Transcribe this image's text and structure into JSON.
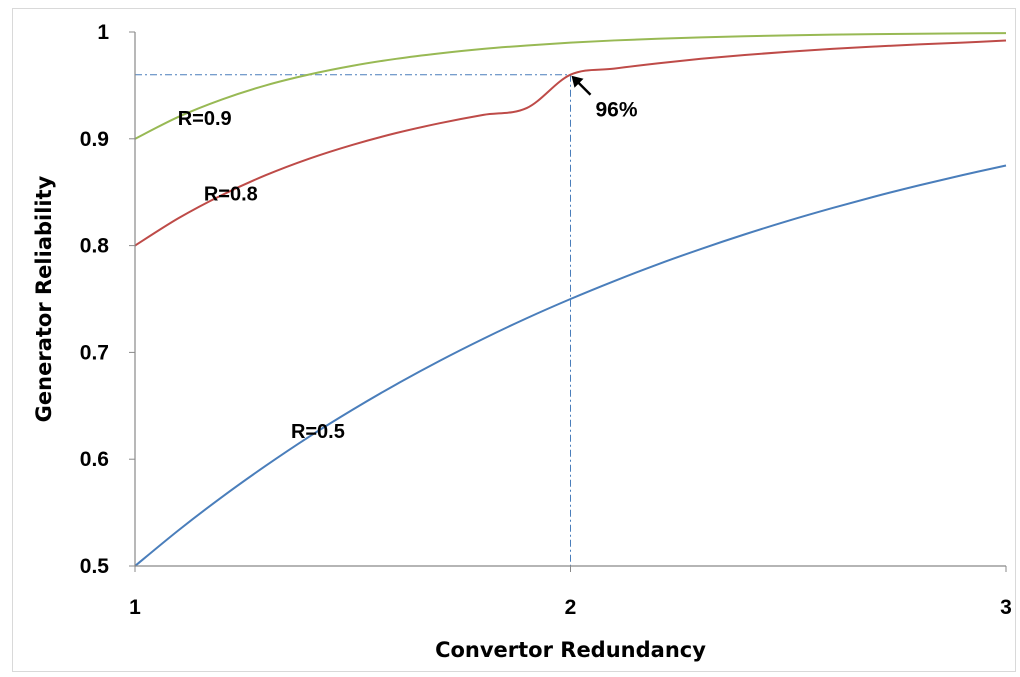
{
  "chart_data": {
    "type": "line",
    "title": "",
    "xlabel": "Convertor Redundancy",
    "ylabel": "Generator Reliability",
    "xlim": [
      1,
      3
    ],
    "ylim": [
      0.5,
      1
    ],
    "x_ticks": [
      "1",
      "2",
      "3"
    ],
    "y_ticks": [
      "0.5",
      "0.6",
      "0.7",
      "0.8",
      "0.9",
      "1"
    ],
    "grid": false,
    "x": [
      1,
      1.1,
      1.2,
      1.3,
      1.4,
      1.5,
      1.6,
      1.7,
      1.8,
      1.9,
      2,
      2.1,
      2.2,
      2.3,
      2.4,
      2.5,
      2.6,
      2.7,
      2.8,
      2.9,
      3
    ],
    "series": [
      {
        "name": "R=0.5",
        "color": "#4a7ebb",
        "values": [
          0.5,
          0.5335,
          0.5647,
          0.5938,
          0.6211,
          0.6464,
          0.6701,
          0.6922,
          0.7128,
          0.7321,
          0.75,
          0.7667,
          0.7824,
          0.7969,
          0.8105,
          0.8232,
          0.835,
          0.8461,
          0.8564,
          0.866,
          0.875
        ]
      },
      {
        "name": "R=0.8",
        "color": "#be4b48",
        "values": [
          0.8,
          0.8257,
          0.8474,
          0.8659,
          0.8814,
          0.8944,
          0.9054,
          0.9146,
          0.9224,
          0.9289,
          0.96,
          0.9657,
          0.9706,
          0.9749,
          0.9785,
          0.9815,
          0.9842,
          0.9864,
          0.9884,
          0.99,
          0.992
        ]
      },
      {
        "name": "R=0.9",
        "color": "#98b954",
        "values": [
          0.9,
          0.9206,
          0.9369,
          0.95,
          0.9602,
          0.9684,
          0.9749,
          0.98,
          0.9842,
          0.9874,
          0.99,
          0.9921,
          0.9937,
          0.995,
          0.996,
          0.9968,
          0.9975,
          0.998,
          0.9984,
          0.9987,
          0.999
        ]
      }
    ],
    "annotation": {
      "text": "96%",
      "x": 2,
      "y": 0.96,
      "color": "#4a7ebb"
    }
  }
}
